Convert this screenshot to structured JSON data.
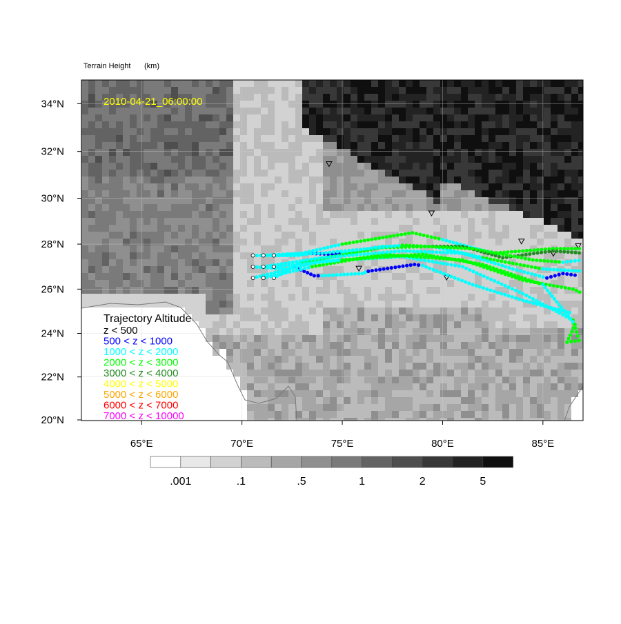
{
  "title_left": "Terrain Height",
  "title_units": "(km)",
  "timestamp": "2010-04-21_06:00:00",
  "colors": {
    "timestamp": "#ffff00"
  },
  "map": {
    "lon_range": [
      62,
      87
    ],
    "lat_range": [
      20,
      35
    ],
    "lon_ticks": [
      {
        "v": 65,
        "label": "65°E"
      },
      {
        "v": 70,
        "label": "70°E"
      },
      {
        "v": 75,
        "label": "75°E"
      },
      {
        "v": 80,
        "label": "80°E"
      },
      {
        "v": 85,
        "label": "85°E"
      }
    ],
    "lat_ticks": [
      {
        "v": 20,
        "label": "20°N"
      },
      {
        "v": 22,
        "label": "22°N"
      },
      {
        "v": 24,
        "label": "24°N"
      },
      {
        "v": 26,
        "label": "26°N"
      },
      {
        "v": 28,
        "label": "28°N"
      },
      {
        "v": 30,
        "label": "30°N"
      },
      {
        "v": 32,
        "label": "32°N"
      },
      {
        "v": 34,
        "label": "34°N"
      }
    ],
    "projection": "mercator"
  },
  "legend": {
    "title": "Trajectory Altitude",
    "items": [
      {
        "label": "z < 500",
        "color": "#000000"
      },
      {
        "label": "500 < z < 1000",
        "color": "#0000ff"
      },
      {
        "label": "1000 < z < 2000",
        "color": "#00ffff"
      },
      {
        "label": "2000 < z < 3000",
        "color": "#00ff00"
      },
      {
        "label": "3000 < z < 4000",
        "color": "#228b22"
      },
      {
        "label": "4000 < z < 5000",
        "color": "#ffff00"
      },
      {
        "label": "5000 < z < 6000",
        "color": "#ffa500"
      },
      {
        "label": "6000 < z < 7000",
        "color": "#ff0000"
      },
      {
        "label": "7000 < z < 10000",
        "color": "#ff00ff"
      }
    ]
  },
  "colorbar": {
    "colors": [
      "#ffffff",
      "#e8e8e8",
      "#d2d2d2",
      "#bbbbbb",
      "#a6a6a6",
      "#8f8f8f",
      "#7a7a7a",
      "#636363",
      "#4e4e4e",
      "#383838",
      "#232323",
      "#0f0f0f"
    ],
    "labels": [
      ".001",
      ".1",
      ".5",
      "1",
      "2",
      "5"
    ]
  },
  "stations": [
    [
      74.34,
      31.45
    ],
    [
      79.45,
      29.33
    ],
    [
      75.83,
      26.9
    ],
    [
      80.2,
      26.5
    ],
    [
      83.93,
      28.1
    ],
    [
      85.52,
      27.56
    ],
    [
      86.76,
      27.9
    ]
  ],
  "trajectories": [
    {
      "start": [
        70.55,
        27.5
      ],
      "points": [
        [
          70.55,
          27.5,
          2
        ],
        [
          72.8,
          27.5,
          2
        ],
        [
          73.3,
          27.6,
          1
        ],
        [
          74.5,
          27.55,
          1
        ],
        [
          75,
          27.6,
          2
        ],
        [
          77,
          27.9,
          2
        ],
        [
          79.5,
          27.9,
          2
        ],
        [
          82,
          27.4,
          3
        ],
        [
          85,
          26.9,
          2
        ],
        [
          87,
          26.8,
          2
        ]
      ]
    },
    {
      "start": [
        71.07,
        27.5
      ],
      "points": [
        [
          71.07,
          27.5,
          2
        ],
        [
          73,
          27.6,
          2
        ],
        [
          75,
          28.0,
          3
        ],
        [
          78.5,
          28.5,
          3
        ],
        [
          80,
          28.2,
          2
        ],
        [
          82.5,
          27.6,
          3
        ],
        [
          85.5,
          27.8,
          3
        ],
        [
          87,
          27.8,
          3
        ]
      ]
    },
    {
      "start": [
        70.55,
        27.0
      ],
      "points": [
        [
          70.55,
          27.0,
          2
        ],
        [
          72.2,
          26.9,
          2
        ],
        [
          72.6,
          27.0,
          1
        ],
        [
          73.6,
          26.6,
          1
        ],
        [
          74,
          26.6,
          2
        ],
        [
          76,
          26.7,
          2
        ],
        [
          76.3,
          26.8,
          1
        ],
        [
          78.6,
          27.1,
          1
        ],
        [
          79,
          27.05,
          2
        ],
        [
          81.5,
          26.2,
          2
        ],
        [
          84,
          25.5,
          2
        ],
        [
          86.5,
          24.9,
          2
        ]
      ]
    },
    {
      "start": [
        71.59,
        26.5
      ],
      "points": [
        [
          71.59,
          26.5,
          2
        ],
        [
          73,
          27.2,
          3
        ],
        [
          77,
          27.85,
          3
        ],
        [
          79.5,
          27.9,
          4
        ],
        [
          81,
          27.9,
          4
        ],
        [
          83,
          27.4,
          4
        ],
        [
          85.5,
          27.7,
          4
        ],
        [
          87,
          27.6,
          3
        ]
      ]
    },
    {
      "start": [
        70.55,
        26.5
      ],
      "points": [
        [
          70.55,
          26.5,
          2
        ],
        [
          74,
          27.25,
          2
        ],
        [
          78,
          27.45,
          2
        ],
        [
          81,
          27.0,
          2
        ],
        [
          84,
          25.8,
          2
        ],
        [
          86.5,
          24.6,
          3
        ],
        [
          86.8,
          23.7,
          2
        ]
      ]
    },
    {
      "start": [
        71.07,
        26.5
      ],
      "points": [
        [
          71.07,
          26.5,
          2
        ],
        [
          73.5,
          27.0,
          3
        ],
        [
          77,
          27.55,
          3
        ],
        [
          81,
          27.3,
          3
        ],
        [
          84,
          26.4,
          3
        ],
        [
          86.5,
          26.0,
          3
        ],
        [
          87,
          25.8,
          3
        ]
      ]
    },
    {
      "start": [
        71.07,
        27.0
      ],
      "points": [
        [
          71.07,
          27.0,
          2
        ],
        [
          74,
          27.4,
          2
        ],
        [
          78,
          27.7,
          2
        ],
        [
          81,
          27.6,
          2
        ],
        [
          83.5,
          26.9,
          2
        ],
        [
          85.2,
          26.5,
          1
        ],
        [
          86,
          26.7,
          1
        ],
        [
          86.8,
          26.6,
          0
        ]
      ]
    },
    {
      "start": [
        71.59,
        27.0
      ],
      "points": [
        [
          71.59,
          27.0,
          2
        ],
        [
          75,
          27.3,
          3
        ],
        [
          79,
          27.55,
          3
        ],
        [
          82,
          27.1,
          3
        ],
        [
          85,
          26.2,
          2
        ],
        [
          86.6,
          24.4,
          3
        ],
        [
          86.2,
          23.6,
          3
        ],
        [
          87,
          23.7,
          4
        ]
      ]
    },
    {
      "start": [
        71.59,
        27.5
      ],
      "points": [
        [
          71.59,
          27.5,
          2
        ],
        [
          74,
          27.6,
          2
        ],
        [
          78,
          27.95,
          3
        ],
        [
          81.5,
          27.8,
          3
        ],
        [
          84.5,
          27.3,
          3
        ],
        [
          86,
          27.2,
          2
        ],
        [
          87,
          27.3,
          2
        ]
      ]
    }
  ]
}
